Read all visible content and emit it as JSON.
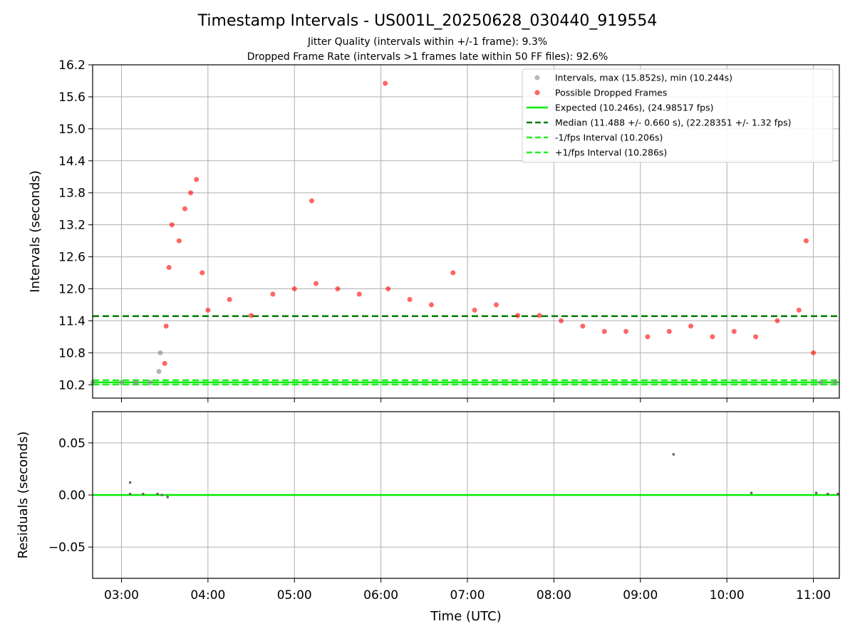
{
  "colors": {
    "intervals": "#8c8c8c",
    "dropped": "#ff0000",
    "expected": "#00ee00",
    "median": "#007a00",
    "band": "#22ee22",
    "grid": "#b0b0b0"
  },
  "chart_data": [
    {
      "type": "scatter",
      "title": "Timestamp Intervals - US001L_20250628_030440_919554",
      "subtitle_1": "Jitter Quality (intervals within +/-1 frame): 9.3%",
      "subtitle_2": "Dropped Frame Rate (intervals >1 frames late within 50 FF files): 92.6%",
      "xlabel": "",
      "ylabel": "Intervals (seconds)",
      "x_unit": "Time (UTC)",
      "xlim": [
        "02:40",
        "11:18"
      ],
      "ylim": [
        9.95,
        16.2
      ],
      "y_ticks": [
        "10.2",
        "10.8",
        "11.4",
        "12.0",
        "12.6",
        "13.2",
        "13.8",
        "14.4",
        "15.0",
        "15.6",
        "16.2"
      ],
      "x_ticks": [
        "03:00",
        "04:00",
        "05:00",
        "06:00",
        "07:00",
        "08:00",
        "09:00",
        "10:00",
        "11:00"
      ],
      "grid": true,
      "legend_position": "top-right",
      "legend": [
        "Intervals, max (15.852s), min (10.244s)",
        "Possible Dropped Frames",
        "Expected (10.246s), (24.98517 fps)",
        "Median (11.488 +/- 0.660 s), (22.28351 +/- 1.32 fps)",
        "-1/fps Interval (10.206s)",
        "+1/fps Interval (10.286s)"
      ],
      "reference_lines": {
        "expected": 10.246,
        "median": 11.488,
        "minus_one_fps": 10.206,
        "plus_one_fps": 10.286
      },
      "series": [
        {
          "name": "Intervals, max (15.852s), min (10.244s)",
          "points": [
            {
              "x": "02:40",
              "y": 10.246
            },
            {
              "x": "03:00",
              "y": 10.246
            },
            {
              "x": "03:10",
              "y": 10.246
            },
            {
              "x": "03:20",
              "y": 10.246
            },
            {
              "x": "03:26",
              "y": 10.45
            },
            {
              "x": "03:27",
              "y": 10.8
            },
            {
              "x": "11:05",
              "y": 10.246
            },
            {
              "x": "11:15",
              "y": 10.246
            }
          ]
        },
        {
          "name": "Possible Dropped Frames",
          "points": [
            {
              "x": "03:30",
              "y": 10.6
            },
            {
              "x": "03:31",
              "y": 11.3
            },
            {
              "x": "03:33",
              "y": 12.4
            },
            {
              "x": "03:35",
              "y": 13.2
            },
            {
              "x": "03:40",
              "y": 12.9
            },
            {
              "x": "03:44",
              "y": 13.5
            },
            {
              "x": "03:48",
              "y": 13.8
            },
            {
              "x": "03:52",
              "y": 14.05
            },
            {
              "x": "03:56",
              "y": 12.3
            },
            {
              "x": "04:00",
              "y": 11.6
            },
            {
              "x": "04:15",
              "y": 11.8
            },
            {
              "x": "04:30",
              "y": 11.5
            },
            {
              "x": "04:45",
              "y": 11.9
            },
            {
              "x": "05:00",
              "y": 12.0
            },
            {
              "x": "05:12",
              "y": 13.65
            },
            {
              "x": "05:15",
              "y": 12.1
            },
            {
              "x": "05:30",
              "y": 12.0
            },
            {
              "x": "05:45",
              "y": 11.9
            },
            {
              "x": "06:03",
              "y": 15.852
            },
            {
              "x": "06:05",
              "y": 12.0
            },
            {
              "x": "06:20",
              "y": 11.8
            },
            {
              "x": "06:35",
              "y": 11.7
            },
            {
              "x": "06:50",
              "y": 12.3
            },
            {
              "x": "07:05",
              "y": 11.6
            },
            {
              "x": "07:20",
              "y": 11.7
            },
            {
              "x": "07:35",
              "y": 11.5
            },
            {
              "x": "07:50",
              "y": 11.5
            },
            {
              "x": "08:05",
              "y": 11.4
            },
            {
              "x": "08:20",
              "y": 11.3
            },
            {
              "x": "08:35",
              "y": 11.2
            },
            {
              "x": "08:50",
              "y": 11.2
            },
            {
              "x": "09:05",
              "y": 11.1
            },
            {
              "x": "09:20",
              "y": 11.2
            },
            {
              "x": "09:35",
              "y": 11.3
            },
            {
              "x": "09:50",
              "y": 11.1
            },
            {
              "x": "10:05",
              "y": 11.2
            },
            {
              "x": "10:20",
              "y": 11.1
            },
            {
              "x": "10:35",
              "y": 11.4
            },
            {
              "x": "10:50",
              "y": 11.6
            },
            {
              "x": "10:55",
              "y": 12.9
            },
            {
              "x": "11:00",
              "y": 10.8
            }
          ]
        }
      ]
    },
    {
      "type": "scatter",
      "title": "",
      "xlabel": "Time (UTC)",
      "ylabel": "Residuals (seconds)",
      "xlim": [
        "02:40",
        "11:18"
      ],
      "ylim": [
        -0.08,
        0.08
      ],
      "y_ticks": [
        "0.05",
        "0.00",
        "−0.05"
      ],
      "x_ticks": [
        "03:00",
        "04:00",
        "05:00",
        "06:00",
        "07:00",
        "08:00",
        "09:00",
        "10:00",
        "11:00"
      ],
      "grid": true,
      "reference_lines": {
        "zero": 0.0
      },
      "series": [
        {
          "name": "",
          "points": [
            {
              "x": "03:06",
              "y": 0.012
            },
            {
              "x": "03:06",
              "y": 0.001
            },
            {
              "x": "03:15",
              "y": 0.001
            },
            {
              "x": "03:25",
              "y": 0.001
            },
            {
              "x": "03:28",
              "y": 0.0
            },
            {
              "x": "03:32",
              "y": -0.002
            },
            {
              "x": "09:23",
              "y": 0.039
            },
            {
              "x": "10:17",
              "y": 0.002
            },
            {
              "x": "11:02",
              "y": 0.002
            },
            {
              "x": "11:10",
              "y": 0.001
            },
            {
              "x": "11:17",
              "y": 0.001
            }
          ]
        }
      ]
    }
  ]
}
